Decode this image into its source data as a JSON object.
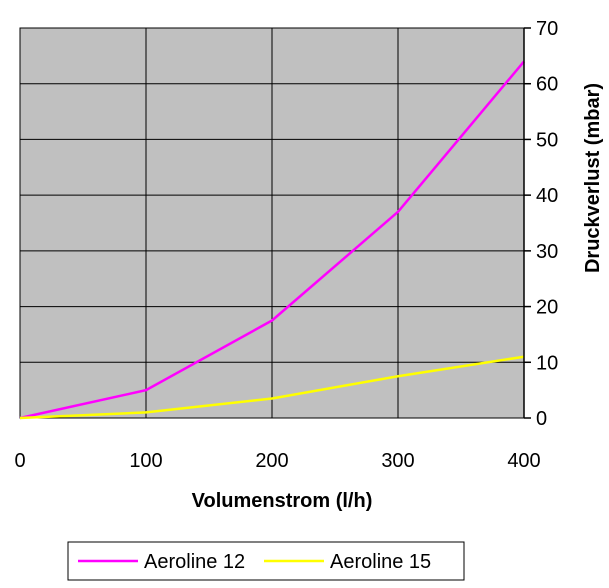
{
  "chart_data": {
    "type": "line",
    "xlabel": "Volumenstrom (l/h)",
    "ylabel": "Druckverlust (mbar)",
    "xlim": [
      0,
      400
    ],
    "ylim": [
      0,
      70
    ],
    "x_ticks": [
      "0",
      "100",
      "200",
      "300",
      "400"
    ],
    "y_ticks": [
      "0",
      "10",
      "20",
      "30",
      "40",
      "50",
      "60",
      "70"
    ],
    "grid": true,
    "plot_background": "#c0c0c0",
    "legend_position": "bottom",
    "series": [
      {
        "name": "Aeroline 12",
        "color": "#ff00ff",
        "x": [
          0,
          100,
          200,
          300,
          400
        ],
        "y": [
          0,
          5,
          17.5,
          37,
          64
        ]
      },
      {
        "name": "Aeroline 15",
        "color": "#ffff00",
        "x": [
          0,
          100,
          200,
          300,
          400
        ],
        "y": [
          0,
          1,
          3.5,
          7.5,
          11
        ]
      }
    ]
  }
}
